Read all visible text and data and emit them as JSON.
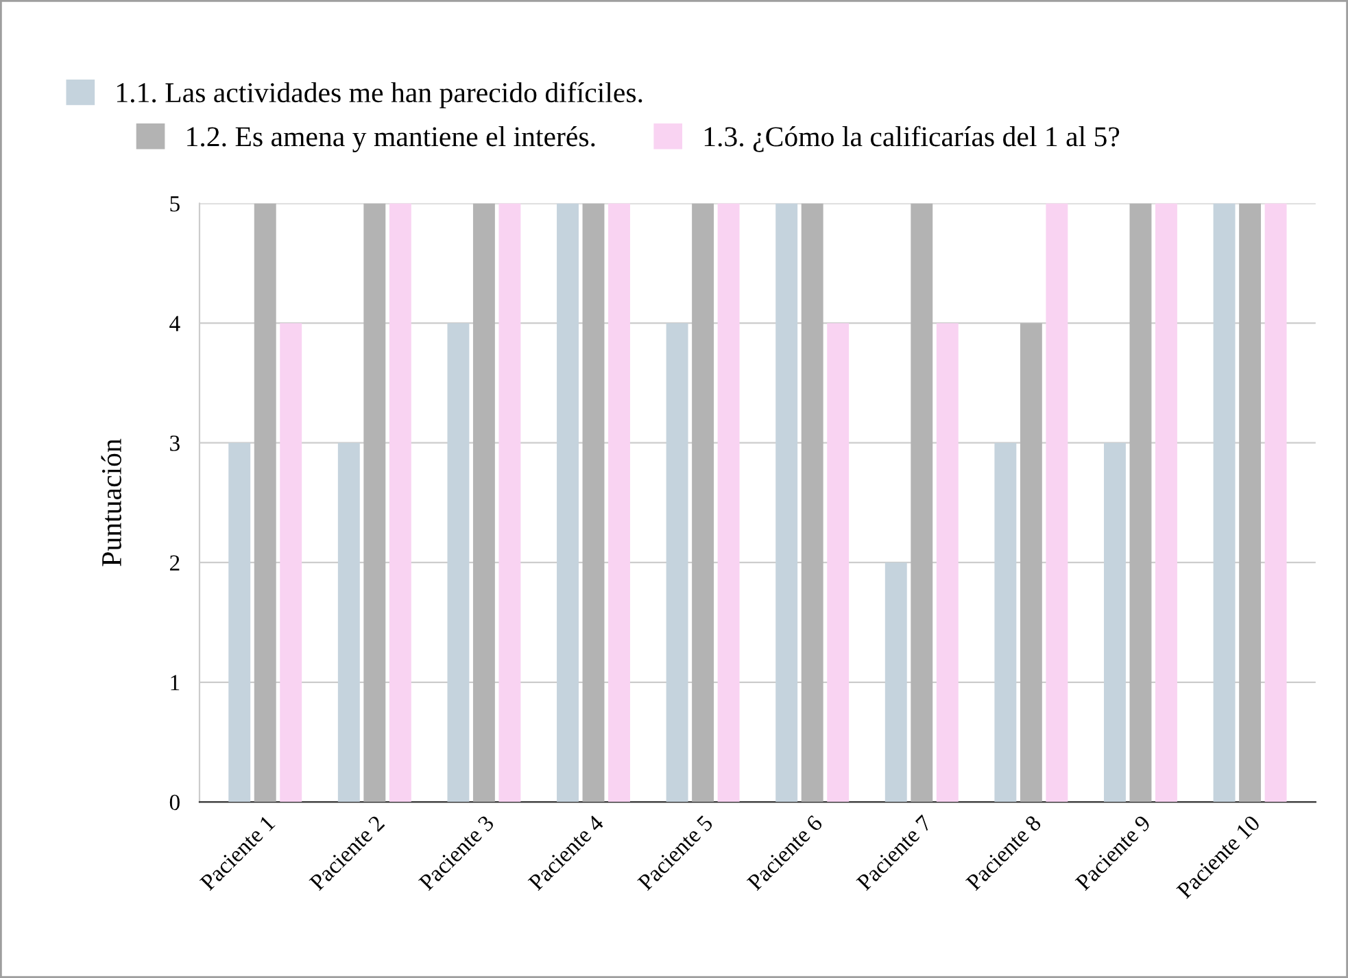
{
  "chart_data": {
    "type": "bar",
    "ylabel": "Puntuación",
    "categories": [
      "Paciente 1",
      "Paciente 2",
      "Paciente 3",
      "Paciente 4",
      "Paciente 5",
      "Paciente 6",
      "Paciente 7",
      "Paciente 8",
      "Paciente 9",
      "Paciente 10"
    ],
    "series": [
      {
        "name": "1.1. Las actividades me han parecido difíciles.",
        "color": "#c5d3dd",
        "values": [
          3,
          3,
          4,
          5,
          4,
          5,
          2,
          3,
          3,
          5
        ]
      },
      {
        "name": "1.2. Es amena y mantiene el interés.",
        "color": "#b3b3b3",
        "values": [
          5,
          5,
          5,
          5,
          5,
          5,
          5,
          4,
          5,
          5
        ]
      },
      {
        "name": "1.3. ¿Cómo la calificarías del 1 al 5?",
        "color": "#f9d3f2",
        "values": [
          4,
          5,
          5,
          5,
          5,
          4,
          4,
          5,
          5,
          5
        ]
      }
    ],
    "ylim": [
      0,
      5
    ],
    "yticks": [
      0,
      1,
      2,
      3,
      4,
      5
    ],
    "grid": "y",
    "legend": "top left"
  }
}
